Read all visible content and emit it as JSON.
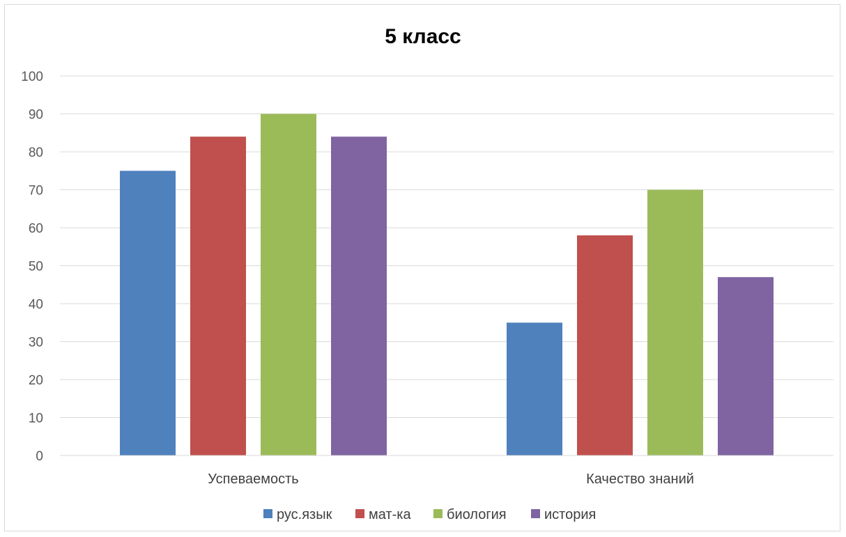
{
  "chart_data": {
    "type": "bar",
    "title": "5 класс",
    "xlabel": "",
    "ylabel": "",
    "ylim": [
      0,
      100
    ],
    "yticks": [
      0,
      10,
      20,
      30,
      40,
      50,
      60,
      70,
      80,
      90,
      100
    ],
    "grid": true,
    "legend_position": "bottom",
    "categories": [
      "Успеваемость",
      "Качество знаний"
    ],
    "series": [
      {
        "name": "рус.язык",
        "color": "#4f81bd",
        "values": [
          75,
          35
        ]
      },
      {
        "name": "мат-ка",
        "color": "#c0504d",
        "values": [
          84,
          58
        ]
      },
      {
        "name": "биология",
        "color": "#9bbb59",
        "values": [
          90,
          70
        ]
      },
      {
        "name": "история",
        "color": "#8064a2",
        "values": [
          84,
          47
        ]
      }
    ]
  }
}
